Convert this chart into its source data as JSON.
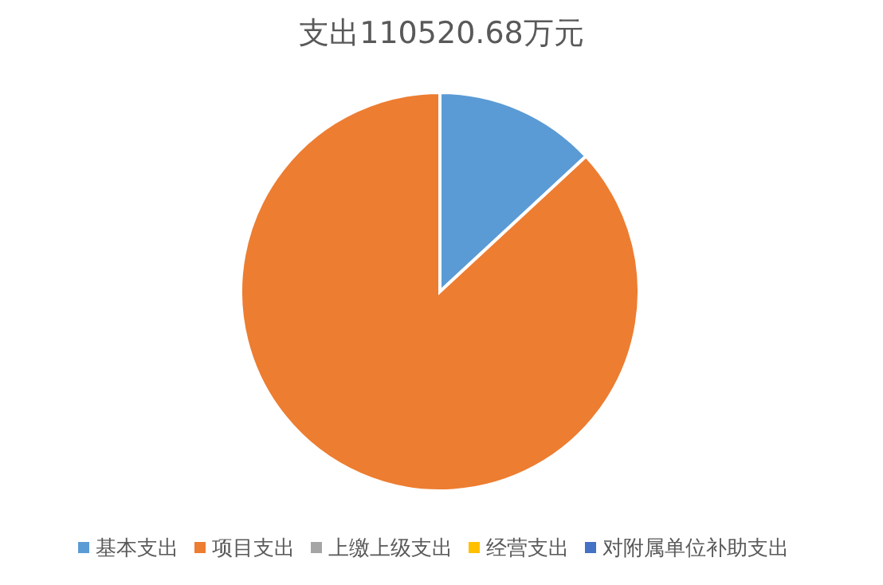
{
  "chart_data": {
    "type": "pie",
    "title": "支出110520.68万元",
    "categories": [
      "基本支出",
      "项目支出",
      "上缴上级支出",
      "经营支出",
      "对附属单位补助支出"
    ],
    "values": [
      13.1,
      86.9,
      0,
      0,
      0
    ],
    "colors": [
      "#5b9bd5",
      "#ed7d31",
      "#a5a5a5",
      "#ffc000",
      "#4472c4"
    ],
    "legend": "bottom"
  }
}
